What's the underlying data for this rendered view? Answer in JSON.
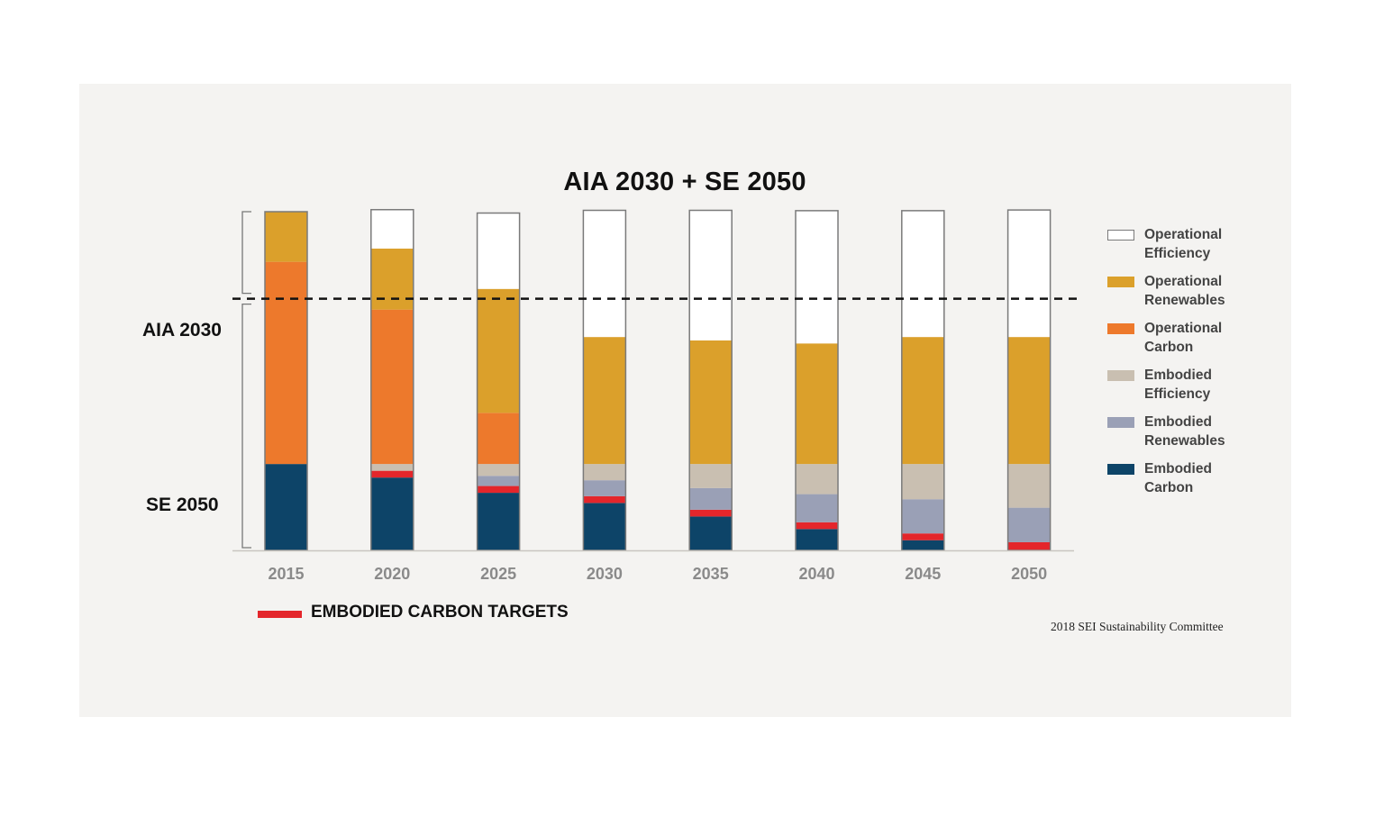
{
  "chart_data": {
    "type": "bar",
    "stacked": true,
    "title": "AIA 2030 + SE 2050",
    "categories": [
      "2015",
      "2020",
      "2025",
      "2030",
      "2035",
      "2040",
      "2045",
      "2050"
    ],
    "ylim": [
      0,
      100
    ],
    "series": [
      {
        "name": "Embodied Carbon",
        "color": "#0d4468",
        "values": [
          25.5,
          21.5,
          17.0,
          14.0,
          10.0,
          6.3,
          3.0,
          0.0
        ]
      },
      {
        "name": "EMBODIED CARBON TARGETS",
        "color": "#e4262b",
        "values": [
          0,
          2.0,
          2.0,
          2.0,
          2.0,
          2.0,
          2.0,
          2.4
        ]
      },
      {
        "name": "Embodied Renewables",
        "color": "#9aa0b6",
        "values": [
          0,
          0,
          3.0,
          4.7,
          6.4,
          8.3,
          10.1,
          10.2
        ]
      },
      {
        "name": "Embodied Efficiency",
        "color": "#c9bfb1",
        "values": [
          0,
          2.0,
          3.5,
          4.8,
          7.1,
          8.9,
          10.4,
          12.9
        ]
      },
      {
        "name": "Operational Carbon",
        "color": "#ed792c",
        "values": [
          59.7,
          45.6,
          15.1,
          0,
          0,
          0,
          0,
          0
        ]
      },
      {
        "name": "Operational Renewables",
        "color": "#dba02b",
        "values": [
          14.8,
          18.0,
          36.6,
          37.5,
          36.5,
          35.6,
          37.5,
          37.5
        ]
      },
      {
        "name": "Operational Efficiency",
        "color": "#ffffff",
        "values": [
          0,
          11.5,
          22.4,
          37.4,
          38.4,
          39.2,
          37.3,
          37.5
        ]
      }
    ],
    "divider": 74.3,
    "zones": [
      "AIA 2030",
      "SE 2050"
    ],
    "legend": [
      {
        "label": "Operational Efficiency",
        "color": "#ffffff"
      },
      {
        "label": "Operational Renewables",
        "color": "#dba02b"
      },
      {
        "label": "Operational Carbon",
        "color": "#ed792c"
      },
      {
        "label": "Embodied Efficiency",
        "color": "#c9bfb1"
      },
      {
        "label": "Embodied Renewables",
        "color": "#9aa0b6"
      },
      {
        "label": "Embodied Carbon",
        "color": "#0d4468"
      }
    ],
    "legend_position": "right",
    "targets_label": "EMBODIED CARBON TARGETS",
    "targets_color": "#e4262b",
    "source": "2018 SEI Sustainability Committee"
  }
}
